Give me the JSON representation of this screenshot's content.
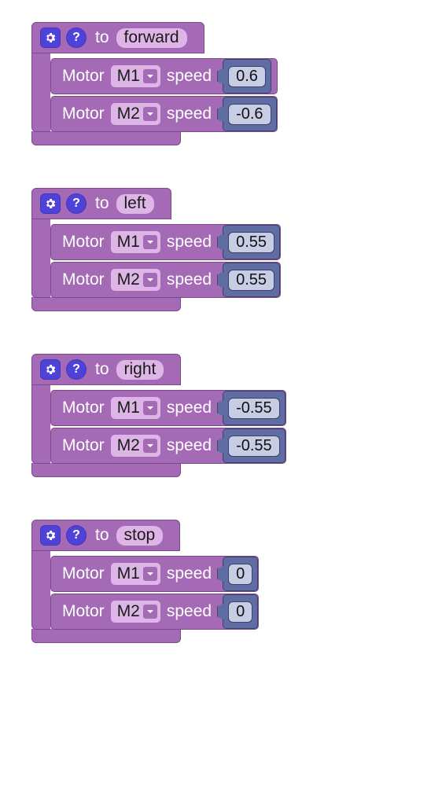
{
  "colors": {
    "block_bg": "#A56AB6",
    "block_border": "#7a4a8a",
    "pill_bg": "#DDB5E7",
    "icon_bg": "#4E42D9",
    "value_slot_bg": "#606DA4",
    "value_slot_border": "#3b4466",
    "value_input_bg": "#C7CDE4",
    "text_light": "#ffffff",
    "text_dark": "#1a1a1a"
  },
  "labels": {
    "to": "to",
    "motor": "Motor",
    "speed": "speed",
    "gear_icon": "⚙",
    "help_icon": "?"
  },
  "functions": [
    {
      "name": "forward",
      "motors": [
        {
          "port": "M1",
          "speed": "0.6"
        },
        {
          "port": "M2",
          "speed": "-0.6"
        }
      ]
    },
    {
      "name": "left",
      "motors": [
        {
          "port": "M1",
          "speed": "0.55"
        },
        {
          "port": "M2",
          "speed": "0.55"
        }
      ]
    },
    {
      "name": "right",
      "motors": [
        {
          "port": "M1",
          "speed": "-0.55"
        },
        {
          "port": "M2",
          "speed": "-0.55"
        }
      ]
    },
    {
      "name": "stop",
      "motors": [
        {
          "port": "M1",
          "speed": "0"
        },
        {
          "port": "M2",
          "speed": "0"
        }
      ]
    }
  ]
}
